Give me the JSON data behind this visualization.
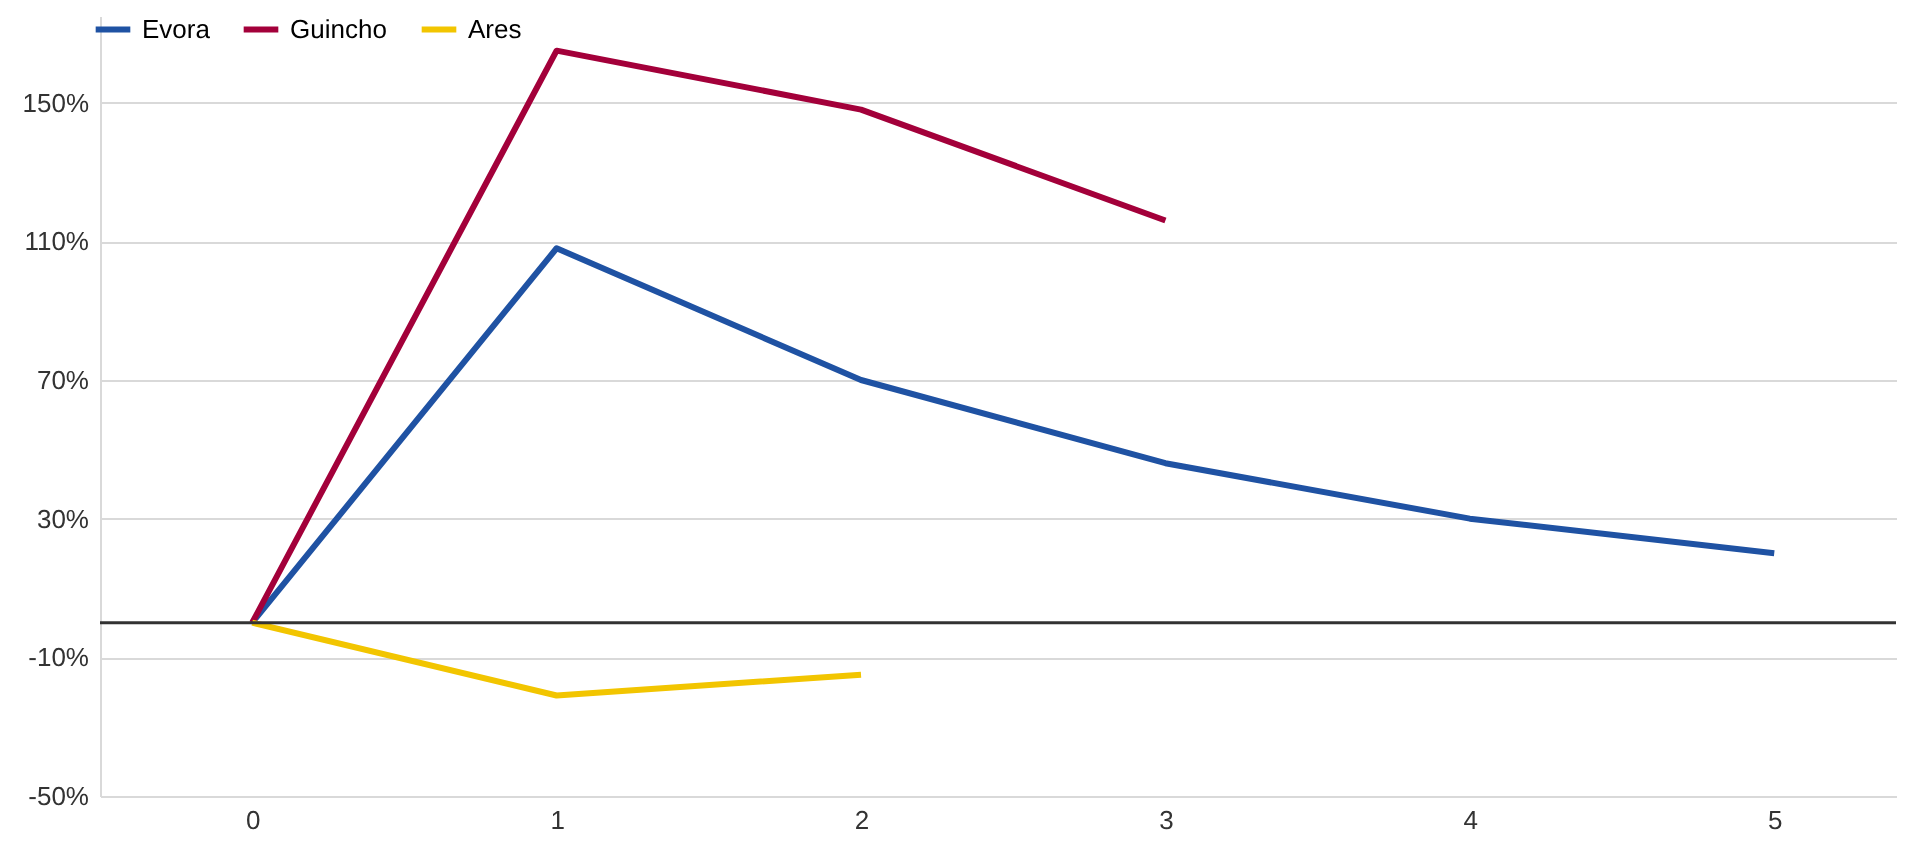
{
  "chart_data": {
    "type": "line",
    "x": [
      0,
      1,
      2,
      3,
      4,
      5
    ],
    "series": [
      {
        "name": "Evora",
        "color": "#1f52a3",
        "values": [
          0,
          108,
          70,
          46,
          30,
          20
        ]
      },
      {
        "name": "Guincho",
        "color": "#a3003a",
        "values": [
          0,
          165,
          148,
          116,
          null,
          null
        ]
      },
      {
        "name": "Ares",
        "color": "#f2c500",
        "values": [
          0,
          -21,
          -15,
          null,
          null,
          null
        ]
      }
    ],
    "xlim": [
      -0.5,
      5.4
    ],
    "xticks": [
      0,
      1,
      2,
      3,
      4,
      5
    ],
    "ylim": [
      -50,
      175
    ],
    "yticks": [
      {
        "value": -50,
        "label": "-50%"
      },
      {
        "value": -10,
        "label": "-10%"
      },
      {
        "value": 30,
        "label": "30%"
      },
      {
        "value": 70,
        "label": "70%"
      },
      {
        "value": 110,
        "label": "110%"
      },
      {
        "value": 150,
        "label": "150%"
      }
    ],
    "ref_lines": [
      {
        "axis": "y",
        "value": 0,
        "color": "#333333"
      }
    ],
    "grid": "y",
    "legend": "top left",
    "marker": "none",
    "line_style": "solid"
  }
}
